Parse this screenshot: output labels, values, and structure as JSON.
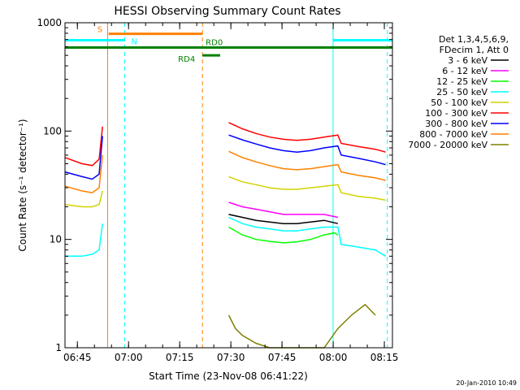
{
  "chart_data": {
    "type": "line",
    "title": "HESSI Observing Summary Count Rates",
    "xlabel": "Start Time (23-Nov-08 06:41:22)",
    "ylabel": "Count Rate (s⁻¹ detector⁻¹)",
    "yscale": "log",
    "ylim": [
      1,
      1000
    ],
    "xlim_minutes_after_start": [
      0,
      96
    ],
    "x_tick_labels": [
      "06:45",
      "07:00",
      "07:15",
      "07:30",
      "07:45",
      "08:00",
      "08:15"
    ],
    "x_tick_minutes": [
      3.63,
      18.63,
      33.63,
      48.63,
      63.63,
      78.63,
      93.63
    ],
    "y_tick_labels": [
      "1",
      "10",
      "100",
      "1000"
    ],
    "y_tick_values": [
      1,
      10,
      100,
      1000
    ],
    "legend_header": [
      "Det 1,3,4,5,6,9,",
      "FDecim 1, Att 0"
    ],
    "legend_position": "right",
    "series": [
      {
        "name": "3 - 6 keV",
        "color": "#000000",
        "points": [
          [
            48,
            17
          ],
          [
            52,
            16
          ],
          [
            56,
            15
          ],
          [
            60,
            14.5
          ],
          [
            64,
            14
          ],
          [
            68,
            14
          ],
          [
            72,
            14.5
          ],
          [
            76,
            15
          ],
          [
            80,
            14
          ]
        ]
      },
      {
        "name": "6 - 12 keV",
        "color": "#ff00ff",
        "points": [
          [
            48,
            22
          ],
          [
            52,
            20
          ],
          [
            56,
            19
          ],
          [
            60,
            18
          ],
          [
            64,
            17
          ],
          [
            68,
            17
          ],
          [
            72,
            17
          ],
          [
            76,
            17
          ],
          [
            80,
            16
          ]
        ]
      },
      {
        "name": "12 - 25 keV",
        "color": "#00ff00",
        "points": [
          [
            48,
            13
          ],
          [
            52,
            11
          ],
          [
            56,
            10
          ],
          [
            60,
            9.6
          ],
          [
            64,
            9.3
          ],
          [
            68,
            9.5
          ],
          [
            72,
            10
          ],
          [
            76,
            11
          ],
          [
            79,
            11.5
          ],
          [
            80,
            11
          ]
        ]
      },
      {
        "name": "25 - 50 keV",
        "color": "#00ffff",
        "points": [
          [
            0,
            7
          ],
          [
            5,
            7
          ],
          [
            8,
            7.3
          ],
          [
            10,
            8
          ],
          [
            11,
            14
          ],
          [
            48,
            16
          ],
          [
            52,
            14
          ],
          [
            56,
            13
          ],
          [
            60,
            12.5
          ],
          [
            64,
            12
          ],
          [
            68,
            12
          ],
          [
            72,
            12.5
          ],
          [
            76,
            13
          ],
          [
            80,
            13
          ],
          [
            81,
            9
          ],
          [
            86,
            8.5
          ],
          [
            91,
            8
          ],
          [
            94,
            7
          ]
        ]
      },
      {
        "name": "50 - 100 keV",
        "color": "#d2d200",
        "points": [
          [
            0,
            21
          ],
          [
            5,
            20
          ],
          [
            8,
            20
          ],
          [
            10,
            21
          ],
          [
            11,
            28
          ],
          [
            48,
            38
          ],
          [
            52,
            34
          ],
          [
            56,
            32
          ],
          [
            60,
            30
          ],
          [
            64,
            29
          ],
          [
            68,
            29
          ],
          [
            72,
            30
          ],
          [
            76,
            31
          ],
          [
            80,
            32
          ],
          [
            81,
            27
          ],
          [
            86,
            25
          ],
          [
            91,
            24
          ],
          [
            94,
            23
          ]
        ]
      },
      {
        "name": "100 - 300 keV",
        "color": "#ff0000",
        "points": [
          [
            0,
            57
          ],
          [
            5,
            50
          ],
          [
            8,
            48
          ],
          [
            10,
            55
          ],
          [
            11,
            110
          ],
          [
            48,
            120
          ],
          [
            52,
            105
          ],
          [
            56,
            95
          ],
          [
            60,
            88
          ],
          [
            64,
            84
          ],
          [
            68,
            82
          ],
          [
            72,
            84
          ],
          [
            76,
            88
          ],
          [
            80,
            92
          ],
          [
            81,
            77
          ],
          [
            86,
            72
          ],
          [
            91,
            68
          ],
          [
            94,
            64
          ]
        ]
      },
      {
        "name": "300 - 800 keV",
        "color": "#0000ff",
        "points": [
          [
            0,
            42
          ],
          [
            5,
            38
          ],
          [
            8,
            36
          ],
          [
            10,
            40
          ],
          [
            11,
            90
          ],
          [
            48,
            92
          ],
          [
            52,
            83
          ],
          [
            56,
            76
          ],
          [
            60,
            70
          ],
          [
            64,
            66
          ],
          [
            68,
            64
          ],
          [
            72,
            66
          ],
          [
            76,
            70
          ],
          [
            80,
            73
          ],
          [
            81,
            60
          ],
          [
            86,
            56
          ],
          [
            91,
            52
          ],
          [
            94,
            49
          ]
        ]
      },
      {
        "name": "800 - 7000 keV",
        "color": "#ff8000",
        "points": [
          [
            0,
            31
          ],
          [
            5,
            28
          ],
          [
            8,
            27
          ],
          [
            10,
            30
          ],
          [
            11,
            60
          ],
          [
            48,
            65
          ],
          [
            52,
            57
          ],
          [
            56,
            52
          ],
          [
            60,
            48
          ],
          [
            64,
            45
          ],
          [
            68,
            44
          ],
          [
            72,
            45
          ],
          [
            76,
            47
          ],
          [
            80,
            49
          ],
          [
            81,
            42
          ],
          [
            86,
            39
          ],
          [
            91,
            37
          ],
          [
            94,
            35
          ]
        ]
      },
      {
        "name": "7000 - 20000 keV",
        "color": "#808000",
        "points": [
          [
            48,
            2
          ],
          [
            50,
            1.5
          ],
          [
            52,
            1.3
          ],
          [
            56,
            1.1
          ],
          [
            60,
            1
          ],
          [
            64,
            1
          ],
          [
            68,
            1
          ],
          [
            72,
            1
          ],
          [
            76,
            1
          ],
          [
            80,
            1.5
          ],
          [
            84,
            2
          ],
          [
            88,
            2.5
          ],
          [
            91,
            2
          ]
        ]
      }
    ],
    "attenuator_bars": [
      {
        "label": "S",
        "color": "#ff8000",
        "x_start": 12.8,
        "x_end": 40.3,
        "y_level": 790
      },
      {
        "label": "N",
        "color": "#00ffff",
        "x_start": 0,
        "x_end": 17.5,
        "y_level": 690
      },
      {
        "label": "N",
        "color": "#00ffff",
        "x_start": 78.6,
        "x_end": 96,
        "y_level": 690
      },
      {
        "label": "RD0",
        "color": "#008000",
        "x_start": 0,
        "x_end": 96,
        "y_level": 590
      },
      {
        "label": "RD4",
        "color": "#008000",
        "x_start": 40.3,
        "x_end": 45.5,
        "y_level": 500
      }
    ],
    "vertical_markers": [
      {
        "x": 12.5,
        "color": "#ff8000",
        "style": "solid"
      },
      {
        "x": 17.5,
        "color": "#00ffff",
        "style": "dashed"
      },
      {
        "x": 40.3,
        "color": "#ff8000",
        "style": "dashed"
      },
      {
        "x": 78.6,
        "color": "#00ffff",
        "style": "solid"
      },
      {
        "x": 94.5,
        "color": "#00ffff",
        "style": "dashed"
      }
    ],
    "grid": false
  },
  "footer_timestamp": "20-Jan-2010 10:49"
}
